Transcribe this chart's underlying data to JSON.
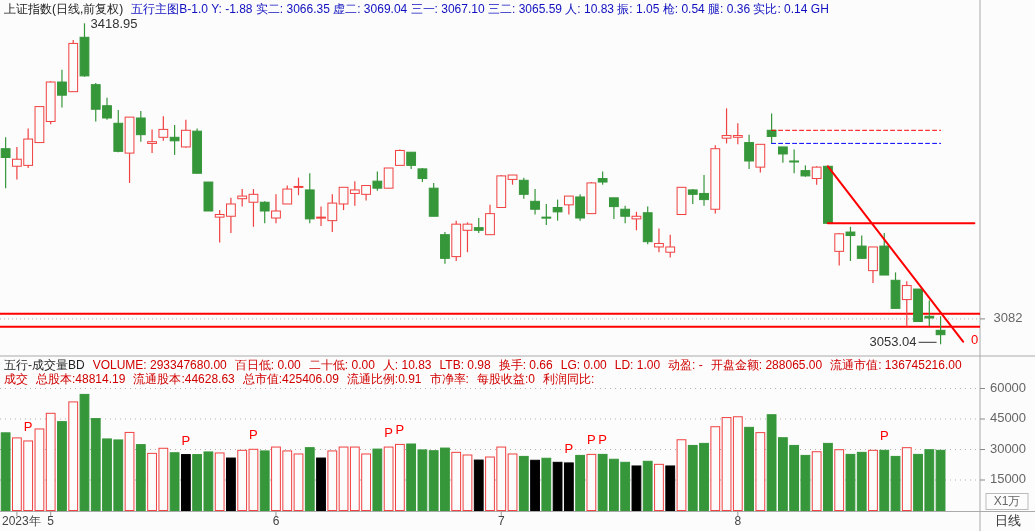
{
  "chart_data": [
    {
      "type": "candlestick",
      "title": "上证指数(日线,前复权)",
      "subtitle": "五行主图B-1.0  Y: -1.88  实二: 3066.35  虚二: 3069.04  三一: 3067.10  三二: 3065.59  人: 10.83  振: 1.05  枪: 0.54  腿: 0.36  实比: 0.14  GH",
      "annotations": [
        "3418.95",
        "3053.04",
        "0"
      ],
      "categories": [
        null,
        null,
        null,
        null,
        null,
        null,
        null,
        null,
        null,
        null,
        null,
        null,
        null,
        null,
        null,
        null,
        null,
        null,
        null,
        null,
        null,
        null,
        null,
        null,
        null,
        null,
        null,
        null,
        null,
        null,
        null,
        null,
        null,
        null,
        null,
        null,
        null,
        null,
        null,
        null,
        null,
        null,
        null,
        null,
        null,
        null,
        null,
        null,
        null,
        null,
        null,
        null,
        null,
        null,
        null,
        null,
        null,
        null,
        null,
        null,
        null,
        null,
        null,
        null,
        null,
        null,
        null,
        null,
        null,
        null,
        null,
        null,
        null,
        null,
        null,
        null,
        null,
        null,
        null,
        null,
        null,
        null,
        null,
        null,
        null,
        null,
        null
      ],
      "ohlc": [
        [
          3276,
          3289,
          3231,
          3266
        ],
        [
          3256,
          3278,
          3241,
          3264
        ],
        [
          3257,
          3299,
          3254,
          3287
        ],
        [
          3283,
          3324,
          3283,
          3324
        ],
        [
          3307,
          3353,
          3304,
          3352
        ],
        [
          3352,
          3366,
          3323,
          3337
        ],
        [
          3341,
          3400,
          3341,
          3396
        ],
        [
          3403,
          3418.95,
          3358,
          3359
        ],
        [
          3349,
          3351,
          3307,
          3321
        ],
        [
          3325,
          3334,
          3309,
          3311
        ],
        [
          3305,
          3320,
          3272,
          3273
        ],
        [
          3271,
          3312,
          3237,
          3312
        ],
        [
          3311,
          3319,
          3284,
          3292
        ],
        [
          3282,
          3298,
          3271,
          3284
        ],
        [
          3289,
          3313,
          3285,
          3298
        ],
        [
          3289,
          3303,
          3269,
          3285
        ],
        [
          3278,
          3309,
          3277,
          3297
        ],
        [
          3296,
          3299,
          3248,
          3248
        ],
        [
          3238,
          3238,
          3205,
          3205
        ],
        [
          3198,
          3206,
          3169,
          3201
        ],
        [
          3199,
          3220,
          3180,
          3213
        ],
        [
          3219,
          3230,
          3210,
          3222
        ],
        [
          3215,
          3230,
          3187,
          3224
        ],
        [
          3215,
          3216,
          3191,
          3205
        ],
        [
          3197,
          3224,
          3191,
          3205
        ],
        [
          3213,
          3234,
          3213,
          3230
        ],
        [
          3232,
          3243,
          3223,
          3233
        ],
        [
          3229,
          3248,
          3191,
          3196
        ],
        [
          3198,
          3210,
          3188,
          3198
        ],
        [
          3194,
          3224,
          3181,
          3214
        ],
        [
          3213,
          3232,
          3206,
          3232
        ],
        [
          3225,
          3239,
          3211,
          3229
        ],
        [
          3224,
          3234,
          3217,
          3234
        ],
        [
          3239,
          3250,
          3228,
          3231
        ],
        [
          3231,
          3254,
          3231,
          3254
        ],
        [
          3257,
          3275,
          3257,
          3274
        ],
        [
          3272,
          3272,
          3253,
          3257
        ],
        [
          3253,
          3254,
          3238,
          3242
        ],
        [
          3231,
          3237,
          3199,
          3199
        ],
        [
          3178,
          3181,
          3145,
          3151
        ],
        [
          3153,
          3194,
          3148,
          3190
        ],
        [
          3183,
          3192,
          3158,
          3190
        ],
        [
          3186,
          3197,
          3180,
          3183
        ],
        [
          3178,
          3212,
          3178,
          3202
        ],
        [
          3209,
          3246,
          3209,
          3245
        ],
        [
          3241,
          3246,
          3235,
          3246
        ],
        [
          3240,
          3243,
          3219,
          3224
        ],
        [
          3216,
          3230,
          3201,
          3207
        ],
        [
          3198,
          3213,
          3189,
          3197
        ],
        [
          3209,
          3218,
          3194,
          3204
        ],
        [
          3212,
          3222,
          3201,
          3222
        ],
        [
          3221,
          3224,
          3194,
          3197
        ],
        [
          3202,
          3238,
          3202,
          3237
        ],
        [
          3242,
          3250,
          3235,
          3238
        ],
        [
          3220,
          3220,
          3196,
          3210
        ],
        [
          3207,
          3211,
          3191,
          3199
        ],
        [
          3196,
          3204,
          3183,
          3199
        ],
        [
          3203,
          3210,
          3167,
          3170
        ],
        [
          3164,
          3185,
          3158,
          3168
        ],
        [
          3158,
          3178,
          3152,
          3164
        ],
        [
          3201,
          3232,
          3201,
          3232
        ],
        [
          3229,
          3230,
          3213,
          3224
        ],
        [
          3225,
          3246,
          3211,
          3218
        ],
        [
          3207,
          3280,
          3202,
          3276
        ],
        [
          3288,
          3322,
          3282,
          3291
        ],
        [
          3289,
          3305,
          3281,
          3291
        ],
        [
          3283,
          3292,
          3253,
          3262
        ],
        [
          3255,
          3281,
          3249,
          3281
        ],
        [
          3297,
          3316,
          3282,
          3290
        ],
        [
          3278,
          3278,
          3260,
          3270
        ],
        [
          3262,
          3275,
          3248,
          3261
        ],
        [
          3251,
          3257,
          3244,
          3245
        ],
        [
          3242,
          3256,
          3235,
          3255
        ],
        [
          3256,
          3256,
          3191,
          3191
        ],
        [
          3159,
          3180,
          3143,
          3179
        ],
        [
          3181,
          3187,
          3148,
          3177
        ],
        [
          3165,
          3177,
          3151,
          3151
        ],
        [
          3137,
          3164,
          3123,
          3164
        ],
        [
          3165,
          3180,
          3132,
          3132
        ],
        [
          3126,
          3135,
          3094,
          3094
        ],
        [
          3104,
          3125,
          3073,
          3120
        ],
        [
          3116,
          3116,
          3079,
          3079
        ],
        [
          3085,
          3103,
          3074,
          3083
        ],
        [
          3069,
          3085,
          3053.04,
          3064
        ],
        null,
        null,
        null
      ],
      "series": [
        {
          "type": "line",
          "color": "#ff0000",
          "line_style": "solid",
          "values": [
            null,
            null,
            null,
            null,
            null,
            null,
            null,
            null,
            null,
            null,
            null,
            null,
            null,
            null,
            null,
            null,
            null,
            null,
            null,
            null,
            null,
            null,
            null,
            null,
            null,
            null,
            null,
            null,
            null,
            null,
            null,
            null,
            null,
            null,
            null,
            null,
            null,
            null,
            null,
            null,
            null,
            null,
            null,
            null,
            null,
            null,
            null,
            null,
            null,
            null,
            null,
            null,
            null,
            null,
            null,
            null,
            null,
            null,
            null,
            null,
            null,
            null,
            null,
            null,
            null,
            null,
            null,
            null,
            null,
            null,
            null,
            null,
            null,
            3256,
            null,
            null,
            null,
            null,
            null,
            null,
            null,
            null,
            null,
            null,
            null,
            3056,
            null
          ]
        },
        {
          "type": "line",
          "color": "#ff0000",
          "line_style": "solid",
          "values": [
            null,
            null,
            null,
            null,
            null,
            null,
            null,
            null,
            null,
            null,
            null,
            null,
            null,
            null,
            null,
            null,
            null,
            null,
            null,
            null,
            null,
            null,
            null,
            null,
            null,
            null,
            null,
            null,
            null,
            null,
            null,
            null,
            null,
            null,
            null,
            null,
            null,
            null,
            null,
            null,
            null,
            null,
            null,
            null,
            null,
            null,
            null,
            null,
            null,
            null,
            null,
            null,
            null,
            null,
            null,
            null,
            null,
            null,
            null,
            null,
            null,
            null,
            null,
            null,
            null,
            null,
            null,
            null,
            null,
            null,
            null,
            null,
            null,
            3191,
            3191,
            3191,
            3191,
            3191,
            3191,
            3191,
            3191,
            3191,
            3191,
            3191,
            3191,
            3191,
            3191
          ]
        },
        {
          "type": "line",
          "color": "#ff0000",
          "line_style": "dashed",
          "values": [
            null,
            null,
            null,
            null,
            null,
            null,
            null,
            null,
            null,
            null,
            null,
            null,
            null,
            null,
            null,
            null,
            null,
            null,
            null,
            null,
            null,
            null,
            null,
            null,
            null,
            null,
            null,
            null,
            null,
            null,
            null,
            null,
            null,
            null,
            null,
            null,
            null,
            null,
            null,
            null,
            null,
            null,
            null,
            null,
            null,
            null,
            null,
            null,
            null,
            null,
            null,
            null,
            null,
            null,
            null,
            null,
            null,
            null,
            null,
            null,
            null,
            null,
            null,
            null,
            null,
            null,
            null,
            null,
            3297,
            3297,
            3297,
            3297,
            3297,
            3297,
            3297,
            3297,
            3297,
            3297,
            3297,
            3297,
            3297,
            3297,
            3297,
            3297,
            null,
            null,
            null
          ]
        },
        {
          "type": "line",
          "color": "#0000ff",
          "line_style": "dashed",
          "values": [
            null,
            null,
            null,
            null,
            null,
            null,
            null,
            null,
            null,
            null,
            null,
            null,
            null,
            null,
            null,
            null,
            null,
            null,
            null,
            null,
            null,
            null,
            null,
            null,
            null,
            null,
            null,
            null,
            null,
            null,
            null,
            null,
            null,
            null,
            null,
            null,
            null,
            null,
            null,
            null,
            null,
            null,
            null,
            null,
            null,
            null,
            null,
            null,
            null,
            null,
            null,
            null,
            null,
            null,
            null,
            null,
            null,
            null,
            null,
            null,
            null,
            null,
            null,
            null,
            null,
            null,
            null,
            null,
            3282,
            3282,
            3282,
            3282,
            3282,
            3282,
            3282,
            3282,
            3282,
            3282,
            3282,
            3282,
            3282,
            3282,
            3282,
            3282,
            null,
            null,
            null
          ]
        }
      ],
      "ref_lines": [
        {
          "axis": "y",
          "value": 3088,
          "color": "#ff0000"
        },
        {
          "axis": "y",
          "value": 3073,
          "color": "#ff0000"
        },
        {
          "axis": "y",
          "value": 3082,
          "label": "3082",
          "color": "#b0b0b0",
          "line_style": "dotted"
        }
      ],
      "grid": false
    },
    {
      "type": "bar",
      "title": "五行-成交量BD",
      "annotations": [
        "VOLUME: 293347680.00",
        "百日低: 0.00",
        "二十低: 0.00",
        "人: 10.83",
        "LTB: 0.98",
        "换手: 0.66",
        "LG: 0.00",
        "LD: 1.00",
        "动盈: -",
        "开盘金额: 288065.00",
        "流通市值: 136745216.00",
        "成交",
        "总股本:48814.19",
        "流通股本:44628.63",
        "总市值:425406.09",
        "流通比例:0.91",
        "市净率:",
        "每股收益:0",
        "利润同比:"
      ],
      "xlabel": "日线",
      "ylabel": "X1万",
      "categories": [
        null,
        "2023年",
        null,
        null,
        "5",
        null,
        null,
        null,
        null,
        null,
        null,
        null,
        null,
        null,
        null,
        null,
        null,
        null,
        null,
        null,
        null,
        null,
        null,
        null,
        "6",
        null,
        null,
        null,
        null,
        null,
        null,
        null,
        null,
        null,
        null,
        null,
        null,
        null,
        null,
        null,
        null,
        null,
        null,
        null,
        "7",
        null,
        null,
        null,
        null,
        null,
        null,
        null,
        null,
        null,
        null,
        null,
        null,
        null,
        null,
        null,
        null,
        null,
        null,
        null,
        null,
        "8",
        null,
        null,
        null,
        null,
        null,
        null,
        null,
        null,
        null,
        null,
        null,
        null,
        null,
        null,
        null,
        null,
        null,
        null,
        null,
        null,
        null
      ],
      "values": [
        38200,
        35700,
        34200,
        40100,
        47800,
        43700,
        53400,
        57100,
        45200,
        35200,
        34700,
        38400,
        32400,
        28100,
        30600,
        28400,
        27500,
        27500,
        28800,
        28300,
        25800,
        29600,
        30100,
        29300,
        31200,
        29300,
        27800,
        30900,
        25800,
        29300,
        31200,
        31200,
        27800,
        30200,
        31200,
        32500,
        32700,
        29800,
        29400,
        30700,
        28600,
        27300,
        24800,
        26300,
        31200,
        27800,
        26600,
        24700,
        25700,
        23700,
        23400,
        27100,
        27600,
        27600,
        25200,
        23700,
        21900,
        24200,
        22700,
        21900,
        34800,
        32000,
        33000,
        41200,
        45700,
        46100,
        40900,
        38300,
        47100,
        35800,
        32000,
        27100,
        28900,
        33000,
        29900,
        27600,
        28600,
        29600,
        29600,
        26600,
        30900,
        27600,
        29900,
        29600,
        null,
        null,
        null
      ],
      "colors": [
        "#36963a",
        "#f04040",
        "#f04040",
        "#f04040",
        "#f04040",
        "#36963a",
        "#f04040",
        "#36963a",
        "#36963a",
        "#36963a",
        "#36963a",
        "#f04040",
        "#36963a",
        "#f04040",
        "#f04040",
        "#36963a",
        "#000000",
        "#36963a",
        "#36963a",
        "#f04040",
        "#000000",
        "#f04040",
        "#f04040",
        "#36963a",
        "#f04040",
        "#f04040",
        "#f04040",
        "#36963a",
        "#000000",
        "#f04040",
        "#f04040",
        "#f04040",
        "#f04040",
        "#36963a",
        "#f04040",
        "#f04040",
        "#36963a",
        "#36963a",
        "#36963a",
        "#36963a",
        "#f04040",
        "#f04040",
        "#000000",
        "#f04040",
        "#f04040",
        "#f04040",
        "#36963a",
        "#000000",
        "#36963a",
        "#000000",
        "#000000",
        "#36963a",
        "#f04040",
        "#36963a",
        "#36963a",
        "#36963a",
        "#000000",
        "#36963a",
        "#f04040",
        "#000000",
        "#f04040",
        "#36963a",
        "#36963a",
        "#f04040",
        "#f04040",
        "#f04040",
        "#36963a",
        "#f04040",
        "#36963a",
        "#36963a",
        "#36963a",
        "#36963a",
        "#f04040",
        "#36963a",
        "#f04040",
        "#36963a",
        "#36963a",
        "#f04040",
        "#36963a",
        "#36963a",
        "#f04040",
        "#36963a",
        "#36963a",
        "#36963a",
        null,
        null,
        null
      ],
      "value_labels": [
        null,
        null,
        "P",
        null,
        null,
        null,
        null,
        null,
        null,
        null,
        null,
        null,
        null,
        null,
        null,
        null,
        "P",
        null,
        null,
        null,
        null,
        null,
        "P",
        null,
        null,
        null,
        null,
        null,
        null,
        null,
        null,
        null,
        null,
        null,
        "P",
        "P",
        null,
        null,
        null,
        null,
        null,
        null,
        null,
        null,
        null,
        null,
        null,
        null,
        null,
        null,
        "P",
        null,
        "P",
        "P",
        null,
        null,
        null,
        null,
        null,
        null,
        null,
        null,
        null,
        null,
        null,
        null,
        null,
        null,
        null,
        null,
        null,
        null,
        null,
        null,
        null,
        null,
        null,
        null,
        "P",
        null,
        null,
        null,
        null,
        null,
        null,
        null,
        null
      ],
      "ylim": [
        0,
        75000
      ],
      "yticks": [
        15000,
        30000,
        45000,
        60000
      ],
      "grid": "y"
    }
  ]
}
